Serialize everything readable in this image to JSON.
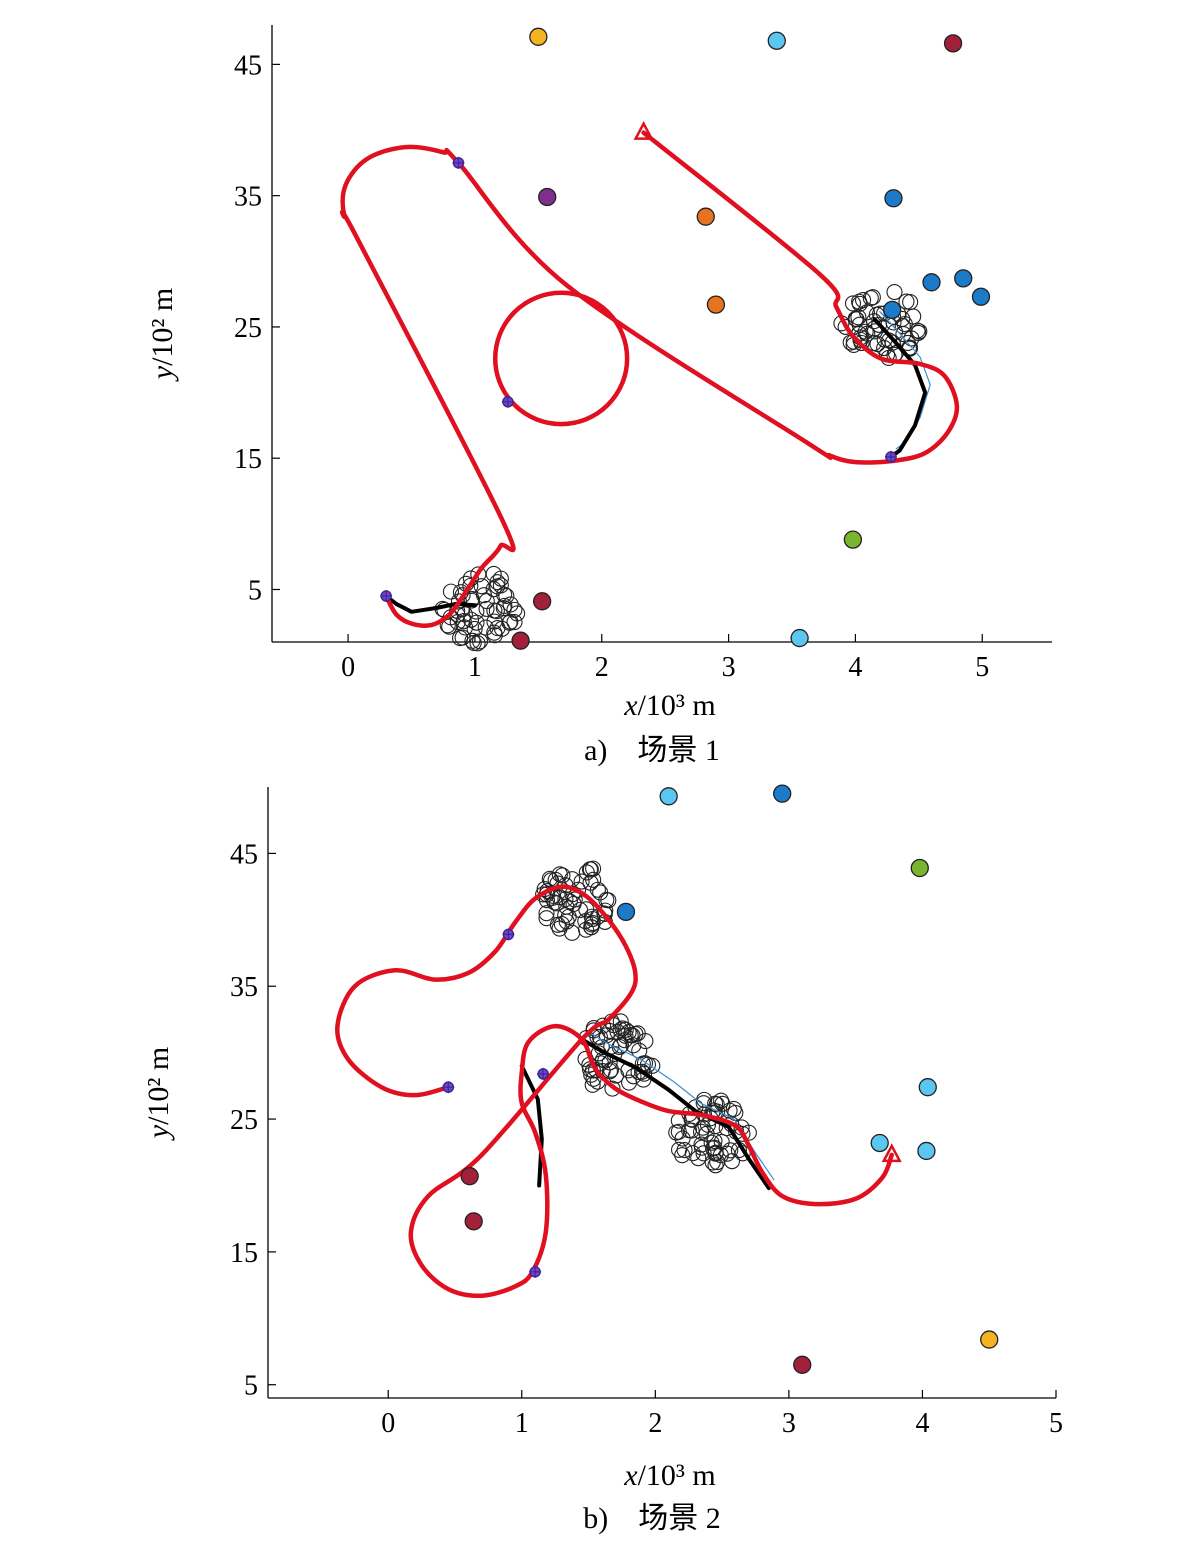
{
  "chart_data": [
    {
      "type": "scatter",
      "caption": "a)　场景 1",
      "xlabel_var": "x",
      "xlabel_unit": "/10³ m",
      "ylabel_var": "y",
      "ylabel_unit": "/10² m",
      "xlim": [
        -0.6,
        5.55
      ],
      "ylim": [
        1,
        48
      ],
      "xticks": [
        0,
        1,
        2,
        3,
        4,
        5
      ],
      "yticks": [
        5,
        15,
        25,
        35,
        45
      ],
      "markers": [
        {
          "x": 1.5,
          "y": 47.1,
          "color": "#F5B324"
        },
        {
          "x": 3.38,
          "y": 46.8,
          "color": "#5BC6F0"
        },
        {
          "x": 4.77,
          "y": 46.6,
          "color": "#A3203A"
        },
        {
          "x": 1.57,
          "y": 34.9,
          "color": "#7E2F8E"
        },
        {
          "x": 2.82,
          "y": 33.4,
          "color": "#E8731E"
        },
        {
          "x": 2.9,
          "y": 26.7,
          "color": "#E8731E"
        },
        {
          "x": 4.3,
          "y": 34.8,
          "color": "#1C7BC8"
        },
        {
          "x": 4.6,
          "y": 28.4,
          "color": "#1C7BC8"
        },
        {
          "x": 4.85,
          "y": 28.7,
          "color": "#1C7BC8"
        },
        {
          "x": 4.99,
          "y": 27.3,
          "color": "#1C7BC8"
        },
        {
          "x": 4.29,
          "y": 26.3,
          "color": "#1C7BC8"
        },
        {
          "x": 3.98,
          "y": 8.8,
          "color": "#7AB530"
        },
        {
          "x": 3.56,
          "y": 1.3,
          "color": "#5BC6F0"
        },
        {
          "x": 1.53,
          "y": 4.1,
          "color": "#A3203A"
        },
        {
          "x": 1.36,
          "y": 1.1,
          "color": "#A3203A"
        }
      ],
      "clusters": [
        {
          "x": 4.2,
          "y": 25.2
        },
        {
          "x": 1.05,
          "y": 3.6
        }
      ],
      "waypoints": [
        {
          "x": 0.3,
          "y": 4.5
        },
        {
          "x": 0.87,
          "y": 37.5
        },
        {
          "x": 1.26,
          "y": 19.3
        },
        {
          "x": 4.28,
          "y": 15.1
        }
      ],
      "start": {
        "x": 2.33,
        "y": 39.8
      },
      "path": [
        [
          2.33,
          39.8
        ],
        [
          3.72,
          29.0
        ],
        [
          3.85,
          26.5
        ],
        [
          3.98,
          24.3
        ],
        [
          4.2,
          22.6
        ],
        [
          4.5,
          22.2
        ],
        [
          4.7,
          21.3
        ],
        [
          4.8,
          19.0
        ],
        [
          4.73,
          17.0
        ],
        [
          4.55,
          15.4
        ],
        [
          4.3,
          14.8
        ],
        [
          4.0,
          14.7
        ],
        [
          3.8,
          15.2
        ],
        [
          3.6,
          16.3
        ],
        [
          1.72,
          28.2
        ],
        [
          0.87,
          37.5
        ],
        [
          0.75,
          38.3
        ],
        [
          0.45,
          38.7
        ],
        [
          0.15,
          37.8
        ],
        [
          -0.02,
          35.8
        ],
        [
          -0.03,
          33.5
        ],
        [
          0.08,
          31.6
        ],
        [
          1.22,
          10.2
        ],
        [
          1.2,
          8.3
        ],
        [
          1.05,
          6.6
        ],
        [
          0.92,
          4.7
        ],
        [
          0.8,
          3.1
        ],
        [
          0.66,
          2.3
        ],
        [
          0.5,
          2.4
        ],
        [
          0.38,
          3.1
        ],
        [
          0.3,
          4.5
        ]
      ],
      "loop": {
        "cx": 1.68,
        "cy": 22.6,
        "rx": 0.52,
        "ry": 5.0
      },
      "black_path": [
        [
          4.15,
          25.6
        ],
        [
          4.3,
          24.0
        ],
        [
          4.47,
          22.1
        ],
        [
          4.55,
          20.0
        ],
        [
          4.47,
          17.5
        ],
        [
          4.35,
          15.6
        ],
        [
          4.28,
          15.1
        ]
      ],
      "black_path2": [
        [
          1.0,
          3.8
        ],
        [
          0.85,
          3.9
        ],
        [
          0.7,
          3.6
        ],
        [
          0.5,
          3.3
        ],
        [
          0.38,
          3.9
        ],
        [
          0.3,
          4.5
        ]
      ]
    },
    {
      "type": "scatter",
      "caption": "b)　场景 2",
      "xlabel_var": "x",
      "xlabel_unit": "/10³ m",
      "ylabel_var": "y",
      "ylabel_unit": "/10² m",
      "xlim": [
        -0.9,
        5.0
      ],
      "ylim": [
        4,
        50
      ],
      "xticks": [
        0,
        1,
        2,
        3,
        4,
        5
      ],
      "yticks": [
        5,
        15,
        25,
        35,
        45
      ],
      "markers": [
        {
          "x": 2.1,
          "y": 49.3,
          "color": "#5BC6F0"
        },
        {
          "x": 2.95,
          "y": 49.5,
          "color": "#1C7BC8"
        },
        {
          "x": 3.98,
          "y": 43.9,
          "color": "#7AB530"
        },
        {
          "x": 1.78,
          "y": 40.6,
          "color": "#1C7BC8"
        },
        {
          "x": 4.04,
          "y": 27.4,
          "color": "#5BC6F0"
        },
        {
          "x": 3.68,
          "y": 23.2,
          "color": "#5BC6F0"
        },
        {
          "x": 4.03,
          "y": 22.6,
          "color": "#5BC6F0"
        },
        {
          "x": 0.61,
          "y": 20.7,
          "color": "#A3203A"
        },
        {
          "x": 0.64,
          "y": 17.3,
          "color": "#A3203A"
        },
        {
          "x": 4.5,
          "y": 8.4,
          "color": "#F5B324"
        },
        {
          "x": 3.1,
          "y": 6.5,
          "color": "#A3203A"
        }
      ],
      "clusters": [
        {
          "x": 1.43,
          "y": 41.6
        },
        {
          "x": 1.7,
          "y": 29.8
        },
        {
          "x": 2.42,
          "y": 24.0
        }
      ],
      "waypoints": [
        {
          "x": 0.45,
          "y": 27.4
        },
        {
          "x": 0.9,
          "y": 38.9
        },
        {
          "x": 1.16,
          "y": 28.4
        },
        {
          "x": 1.1,
          "y": 13.5
        }
      ],
      "start": {
        "x": 3.77,
        "y": 22.3
      },
      "path": [
        [
          3.77,
          22.3
        ],
        [
          3.7,
          20.6
        ],
        [
          3.5,
          19.0
        ],
        [
          3.2,
          18.6
        ],
        [
          2.95,
          19.2
        ],
        [
          2.8,
          21.0
        ],
        [
          2.7,
          23.0
        ],
        [
          2.6,
          24.5
        ],
        [
          2.35,
          25.3
        ],
        [
          2.1,
          25.6
        ],
        [
          1.9,
          26.3
        ],
        [
          1.7,
          27.3
        ],
        [
          1.55,
          28.8
        ],
        [
          1.45,
          31.0
        ],
        [
          1.25,
          32.0
        ],
        [
          1.05,
          30.8
        ],
        [
          1.0,
          28.5
        ],
        [
          1.0,
          26.2
        ],
        [
          1.1,
          24.0
        ],
        [
          1.18,
          20.8
        ],
        [
          1.18,
          16.5
        ],
        [
          1.08,
          13.5
        ],
        [
          0.95,
          12.4
        ],
        [
          0.7,
          11.7
        ],
        [
          0.45,
          12.2
        ],
        [
          0.25,
          14.0
        ],
        [
          0.17,
          16.5
        ],
        [
          0.3,
          19.2
        ],
        [
          0.7,
          22.3
        ],
        [
          1.45,
          31.0
        ],
        [
          1.65,
          32.5
        ],
        [
          1.82,
          34.5
        ],
        [
          1.85,
          36.0
        ],
        [
          1.78,
          38.0
        ],
        [
          1.65,
          40.0
        ],
        [
          1.48,
          41.8
        ],
        [
          1.3,
          42.5
        ],
        [
          1.1,
          41.6
        ],
        [
          0.95,
          39.8
        ],
        [
          0.8,
          37.6
        ],
        [
          0.6,
          36.0
        ],
        [
          0.35,
          35.5
        ],
        [
          0.05,
          36.2
        ],
        [
          -0.25,
          35.0
        ],
        [
          -0.38,
          32.0
        ],
        [
          -0.3,
          29.5
        ],
        [
          -0.05,
          27.4
        ],
        [
          0.2,
          26.8
        ],
        [
          0.45,
          27.4
        ]
      ],
      "black_path": [
        [
          1.45,
          31.0
        ],
        [
          1.62,
          30.0
        ],
        [
          1.85,
          28.9
        ],
        [
          2.1,
          27.2
        ],
        [
          2.3,
          25.6
        ],
        [
          2.55,
          24.4
        ],
        [
          2.7,
          22.0
        ],
        [
          2.85,
          19.8
        ]
      ],
      "black_path2": [
        [
          1.0,
          29.0
        ],
        [
          1.12,
          26.5
        ],
        [
          1.15,
          23.5
        ],
        [
          1.13,
          20.0
        ]
      ]
    }
  ]
}
